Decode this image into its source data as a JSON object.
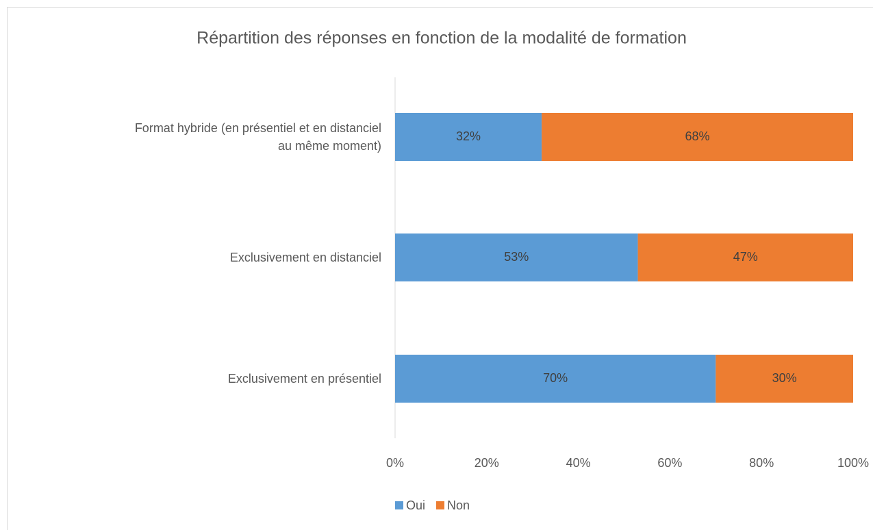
{
  "chart_data": {
    "type": "stacked_barh",
    "title": "Répartition des réponses en fonction de la modalité de formation",
    "categories": [
      "Format hybride (en présentiel et en distanciel au même moment)",
      "Exclusivement en distanciel",
      "Exclusivement en présentiel"
    ],
    "series": [
      {
        "name": "Oui",
        "color": "#5b9bd5",
        "values": [
          32,
          53,
          70
        ],
        "value_labels": [
          "32%",
          "53%",
          "70%"
        ]
      },
      {
        "name": "Non",
        "color": "#ed7d31",
        "values": [
          68,
          47,
          30
        ],
        "value_labels": [
          "68%",
          "47%",
          "30%"
        ]
      }
    ],
    "xlim": [
      0,
      100
    ],
    "xticks": [
      {
        "value": 0,
        "label": "0%"
      },
      {
        "value": 20,
        "label": "20%"
      },
      {
        "value": 40,
        "label": "40%"
      },
      {
        "value": 60,
        "label": "60%"
      },
      {
        "value": 80,
        "label": "80%"
      },
      {
        "value": 100,
        "label": "100%"
      }
    ],
    "legend": "bottom"
  }
}
